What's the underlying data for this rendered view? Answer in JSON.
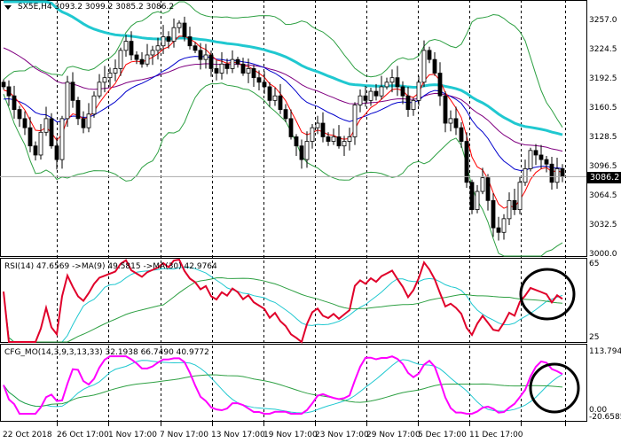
{
  "header": {
    "symbol": "SX5E,H4",
    "ohlc": "3093.2 3099.2 3085.2 3086.2"
  },
  "rsi_panel": {
    "label": "RSI(14) 47.6569",
    "ma1": "->MA(9) 49.5815",
    "ma2": "->MA(30) 42.9764",
    "ticks": [
      "65",
      "25"
    ]
  },
  "cfg_panel": {
    "label": "CFG_MO(14,3,9,3,13,33) 32.1938 66.7490 40.9772",
    "ticks": [
      "113.7942",
      "0.00",
      "-20.6585"
    ]
  },
  "current_price": "3086.2",
  "colors": {
    "bull": "#000000",
    "bear": "#000000",
    "ma_fast": "#ff0000",
    "ma_blue": "#0000cc",
    "ma_purple": "#800080",
    "ma_cyan": "#20c8d0",
    "bands": "#2ea043",
    "rsi": "#e0002a",
    "osc": "#ff00ff"
  },
  "chart_data": {
    "type": "line",
    "title": "SX5E,H4",
    "price_ticks": [
      "3257.0",
      "3224.5",
      "3192.5",
      "3160.5",
      "3128.5",
      "3096.5",
      "3064.5",
      "3032.5",
      "3000.0"
    ],
    "ylim": [
      3000.0,
      3257.0
    ],
    "x_ticks": [
      "22 Oct 2018",
      "26 Oct 17:00",
      "1 Nov 17:00",
      "7 Nov 17:00",
      "13 Nov 17:00",
      "19 Nov 17:00",
      "23 Nov 17:00",
      "29 Nov 17:00",
      "5 Dec 17:00",
      "11 Dec 17:00"
    ],
    "closes": [
      3185,
      3175,
      3160,
      3150,
      3140,
      3120,
      3110,
      3135,
      3150,
      3120,
      3105,
      3150,
      3190,
      3170,
      3150,
      3140,
      3155,
      3175,
      3190,
      3195,
      3200,
      3205,
      3225,
      3235,
      3220,
      3215,
      3210,
      3220,
      3225,
      3230,
      3240,
      3235,
      3250,
      3255,
      3240,
      3230,
      3225,
      3215,
      3220,
      3205,
      3200,
      3210,
      3205,
      3215,
      3210,
      3200,
      3205,
      3195,
      3190,
      3185,
      3170,
      3175,
      3160,
      3150,
      3130,
      3120,
      3105,
      3125,
      3140,
      3145,
      3130,
      3125,
      3130,
      3120,
      3125,
      3130,
      3165,
      3175,
      3170,
      3180,
      3175,
      3185,
      3190,
      3195,
      3185,
      3175,
      3160,
      3170,
      3190,
      3225,
      3215,
      3200,
      3175,
      3145,
      3150,
      3140,
      3125,
      3080,
      3050,
      3070,
      3085,
      3060,
      3030,
      3025,
      3040,
      3060,
      3050,
      3080,
      3095,
      3115,
      3110,
      3105,
      3100,
      3080,
      3095,
      3086.2
    ]
  }
}
